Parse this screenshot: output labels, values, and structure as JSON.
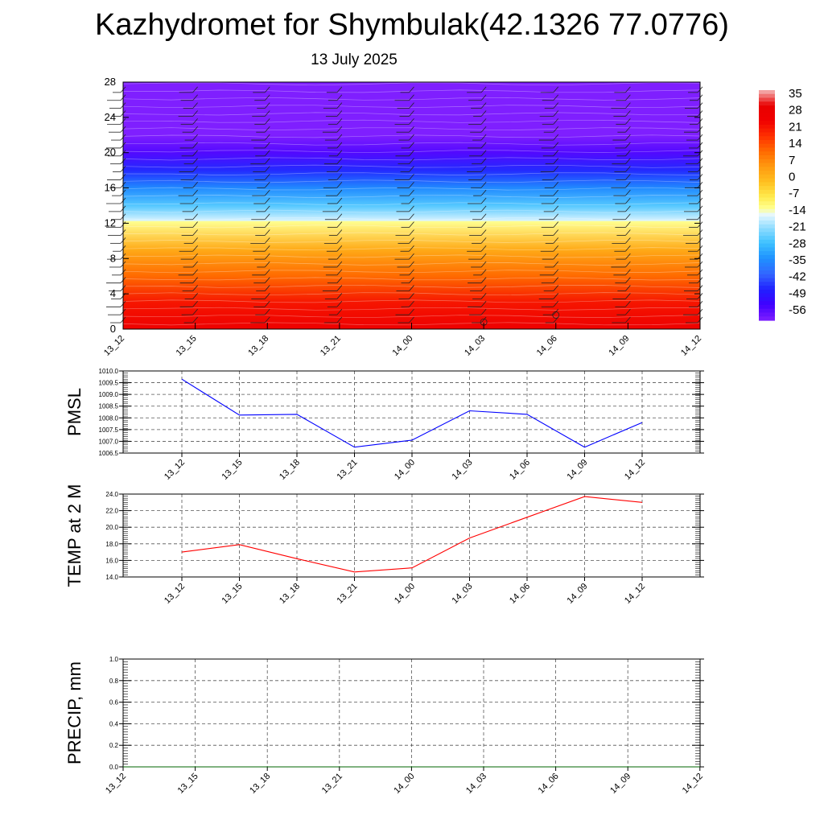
{
  "title": "Kazhydromet for Shymbulak(42.1326 77.0776)",
  "subtitle": "13 July 2025",
  "chart_data": [
    {
      "type": "heatmap",
      "name": "cross-section",
      "xlabel": "",
      "ylabel": "",
      "x_ticks": [
        "13_12",
        "13_15",
        "13_18",
        "13_21",
        "14_00",
        "14_03",
        "14_06",
        "14_09",
        "14_12"
      ],
      "y_ticks": [
        0,
        4,
        8,
        12,
        16,
        20,
        24,
        28
      ],
      "ylim": [
        0,
        28
      ],
      "colorbar": {
        "labels": [
          "35",
          "28",
          "21",
          "14",
          "7",
          "0",
          "-7",
          "-14",
          "-21",
          "-28",
          "-35",
          "-42",
          "-49",
          "-56"
        ],
        "range": [
          -63,
          42
        ]
      },
      "profile": [
        {
          "level": 0,
          "value": 30
        },
        {
          "level": 3,
          "value": 25
        },
        {
          "level": 6,
          "value": 14
        },
        {
          "level": 9,
          "value": 4
        },
        {
          "level": 12.2,
          "value": -12
        },
        {
          "level": 12.3,
          "value": -16
        },
        {
          "level": 14,
          "value": -26
        },
        {
          "level": 16,
          "value": -36
        },
        {
          "level": 18,
          "value": -48
        },
        {
          "level": 20,
          "value": -58
        },
        {
          "level": 22,
          "value": -63
        },
        {
          "level": 24,
          "value": -66
        },
        {
          "level": 28,
          "value": -66
        }
      ]
    },
    {
      "type": "line",
      "ylabel": "PMSL",
      "x": [
        "13_12",
        "13_15",
        "13_18",
        "13_21",
        "14_00",
        "14_03",
        "14_06",
        "14_09",
        "14_12"
      ],
      "ylim": [
        1006.5,
        1010.0
      ],
      "y_ticks": [
        "1006.5",
        "1007.0",
        "1007.5",
        "1008.0",
        "1008.5",
        "1009.0",
        "1009.5",
        "1010.0"
      ],
      "series": [
        {
          "color": "#0000ff",
          "values": [
            1009.65,
            1008.12,
            1008.15,
            1006.75,
            1007.05,
            1008.3,
            1008.15,
            1006.75,
            1007.8
          ]
        }
      ],
      "grid": true
    },
    {
      "type": "line",
      "ylabel": "TEMP at 2 M",
      "x": [
        "13_12",
        "13_15",
        "13_18",
        "13_21",
        "14_00",
        "14_03",
        "14_06",
        "14_09",
        "14_12"
      ],
      "ylim": [
        14.0,
        24.0
      ],
      "y_ticks": [
        "14.0",
        "16.0",
        "18.0",
        "20.0",
        "22.0",
        "24.0"
      ],
      "series": [
        {
          "color": "#ff0000",
          "values": [
            17.0,
            17.9,
            16.2,
            14.6,
            15.1,
            18.7,
            21.2,
            23.7,
            23.0
          ]
        }
      ],
      "grid": true
    },
    {
      "type": "line",
      "ylabel": "PRECIP, mm",
      "x": [
        "13_12",
        "13_15",
        "13_18",
        "13_21",
        "14_00",
        "14_03",
        "14_06",
        "14_09",
        "14_12"
      ],
      "ylim": [
        0.0,
        1.0
      ],
      "y_ticks": [
        "0.0",
        "0.2",
        "0.4",
        "0.6",
        "0.8",
        "1.0"
      ],
      "series": [
        {
          "color": "#006400",
          "values": [
            0,
            0,
            0,
            0,
            0,
            0,
            0,
            0,
            0
          ]
        }
      ],
      "grid": true
    }
  ]
}
